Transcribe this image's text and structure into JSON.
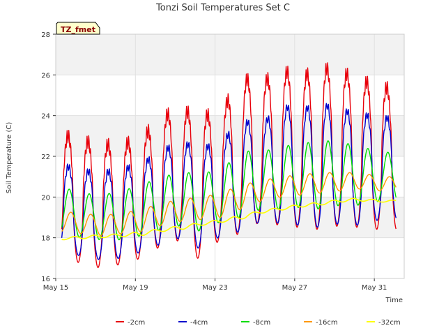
{
  "chart_data": {
    "type": "line",
    "title": "Tonzi Soil Temperatures Set C",
    "xlabel": "Time",
    "ylabel": "Soil Temperature (C)",
    "site_label": "TZ_fmet",
    "ylim": [
      16,
      28
    ],
    "yticks": [
      16,
      18,
      20,
      22,
      24,
      26,
      28
    ],
    "xlim_day": [
      15,
      32.5
    ],
    "xticks": [
      {
        "day": 15,
        "label": "May 15"
      },
      {
        "day": 19,
        "label": "May 19"
      },
      {
        "day": 23,
        "label": "May 23"
      },
      {
        "day": 27,
        "label": "May 27"
      },
      {
        "day": 31,
        "label": "May 31"
      }
    ],
    "grid": true,
    "legend_position": "bottom",
    "x_start_day": 15.3,
    "x_end_day": 32.1,
    "series": [
      {
        "name": "-2cm",
        "color": "#e8000b",
        "daily_min": [
          17.2,
          16.7,
          16.5,
          16.7,
          17.0,
          17.6,
          17.9,
          16.8,
          18.0,
          18.2,
          18.8,
          18.6,
          18.5,
          18.4,
          18.6,
          18.5,
          18.4
        ],
        "daily_max": [
          23.1,
          22.8,
          22.6,
          22.6,
          22.9,
          24.0,
          24.3,
          24.0,
          24.2,
          25.9,
          25.6,
          26.3,
          25.9,
          26.4,
          26.2,
          25.8,
          25.4
        ]
      },
      {
        "name": "-4cm",
        "color": "#0000cc",
        "daily_min": [
          17.3,
          17.1,
          16.9,
          17.0,
          17.3,
          17.7,
          18.0,
          17.4,
          18.1,
          18.3,
          18.8,
          18.7,
          18.6,
          18.5,
          18.7,
          18.6,
          18.9
        ],
        "daily_max": [
          21.6,
          21.3,
          21.2,
          21.4,
          21.6,
          22.3,
          22.7,
          22.4,
          22.7,
          23.8,
          23.5,
          24.5,
          24.3,
          24.6,
          24.3,
          24.1,
          23.9
        ]
      },
      {
        "name": "-8cm",
        "color": "#00dd00",
        "daily_min": [
          18.2,
          18.0,
          17.9,
          17.9,
          18.1,
          18.4,
          18.6,
          18.3,
          18.8,
          19.0,
          19.4,
          19.4,
          19.5,
          19.4,
          19.6,
          19.6,
          19.8
        ],
        "daily_max": [
          20.5,
          20.2,
          20.1,
          20.3,
          20.6,
          21.0,
          21.2,
          21.2,
          21.3,
          22.3,
          22.2,
          22.5,
          22.6,
          22.8,
          22.7,
          22.5,
          22.2
        ]
      },
      {
        "name": "-16cm",
        "color": "#ff9900",
        "daily_min": [
          18.3,
          18.2,
          18.1,
          18.2,
          18.3,
          18.6,
          18.8,
          18.9,
          19.0,
          19.4,
          19.8,
          20.0,
          20.1,
          20.2,
          20.3,
          20.4,
          20.3
        ],
        "daily_max": [
          19.3,
          19.2,
          19.1,
          19.2,
          19.4,
          19.7,
          19.9,
          20.0,
          20.2,
          20.6,
          20.8,
          21.0,
          21.1,
          21.2,
          21.2,
          21.2,
          21.0
        ]
      },
      {
        "name": "-32cm",
        "color": "#ffff00",
        "daily_min": [
          17.9,
          17.95,
          18.0,
          18.05,
          18.1,
          18.3,
          18.4,
          18.6,
          18.75,
          18.9,
          19.2,
          19.35,
          19.5,
          19.6,
          19.75,
          19.8,
          19.75
        ],
        "daily_max": [
          18.0,
          18.1,
          18.15,
          18.2,
          18.3,
          18.45,
          18.6,
          18.75,
          18.9,
          19.1,
          19.35,
          19.5,
          19.65,
          19.75,
          19.9,
          19.95,
          19.85
        ]
      }
    ]
  }
}
